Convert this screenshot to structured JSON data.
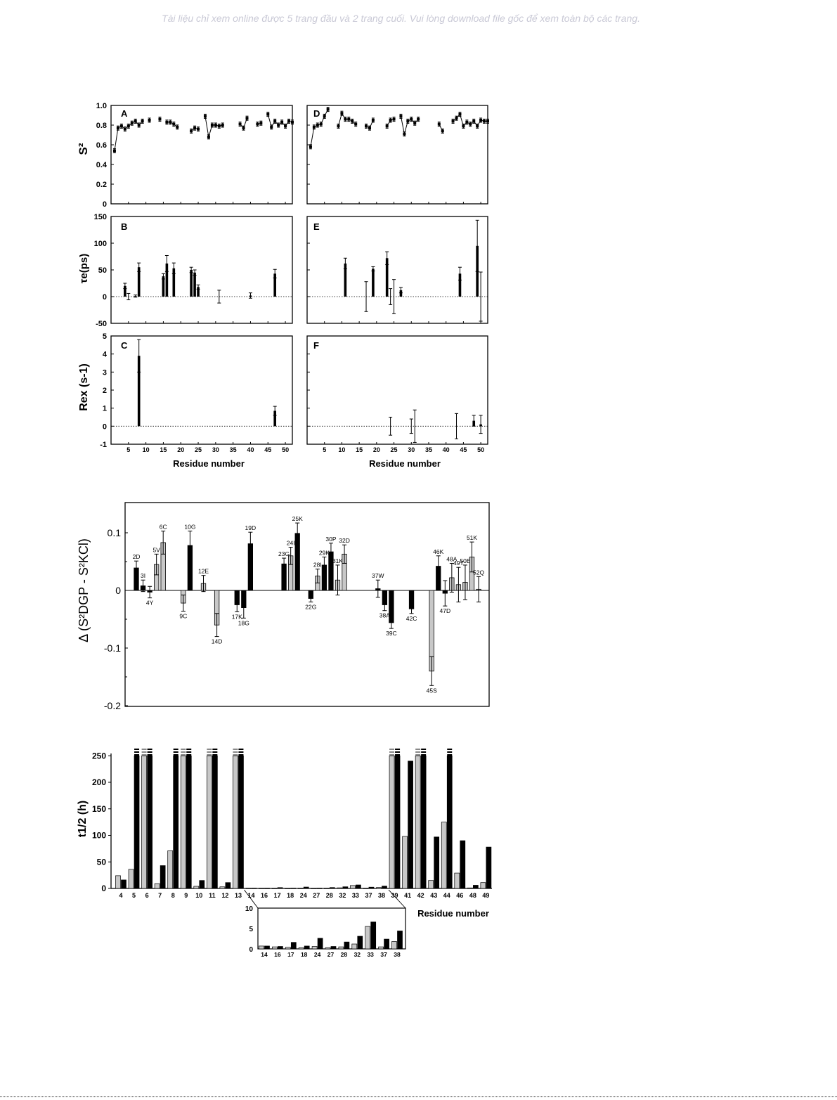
{
  "banner": "Tài liệu chỉ xem online được 5 trang đầu và 2 trang cuối. Vui lòng download file gốc để xem toàn bộ các trang.",
  "chart_data": [
    {
      "type": "scatter",
      "panel_left": "A",
      "panel_right": "D",
      "ylabel": "S²",
      "yticks": [
        "1.0",
        "0.8",
        "0.6",
        "0.4",
        "0.2",
        "0"
      ],
      "ylim": [
        0,
        1.0
      ],
      "xlim": [
        0,
        52
      ],
      "series": [
        {
          "x": [
            1,
            2,
            3,
            4,
            5,
            6,
            7,
            8,
            9,
            11,
            14,
            16,
            17,
            18,
            19,
            23,
            24,
            25,
            27,
            28,
            29,
            30,
            31,
            32,
            37,
            38,
            39,
            42,
            43,
            45,
            46,
            47,
            48,
            49,
            50,
            51,
            52
          ],
          "y": [
            0.54,
            0.77,
            0.79,
            0.76,
            0.79,
            0.82,
            0.84,
            0.8,
            0.84,
            0.85,
            0.86,
            0.83,
            0.83,
            0.81,
            0.78,
            0.74,
            0.77,
            0.76,
            0.89,
            0.68,
            0.8,
            0.8,
            0.79,
            0.8,
            0.81,
            0.77,
            0.87,
            0.81,
            0.82,
            0.91,
            0.78,
            0.84,
            0.8,
            0.83,
            0.79,
            0.84,
            0.83
          ]
        },
        {
          "x": [
            1,
            2,
            3,
            4,
            5,
            6,
            9,
            10,
            11,
            12,
            13,
            14,
            17,
            18,
            19,
            23,
            24,
            25,
            27,
            28,
            29,
            30,
            31,
            32,
            38,
            39,
            42,
            43,
            44,
            45,
            46,
            47,
            48,
            49,
            50,
            51,
            52
          ],
          "y": [
            0.58,
            0.78,
            0.8,
            0.81,
            0.89,
            0.96,
            0.79,
            0.92,
            0.86,
            0.86,
            0.84,
            0.81,
            0.79,
            0.77,
            0.85,
            0.79,
            0.85,
            0.86,
            0.89,
            0.71,
            0.84,
            0.86,
            0.82,
            0.86,
            0.81,
            0.74,
            0.84,
            0.87,
            0.91,
            0.79,
            0.83,
            0.81,
            0.84,
            0.79,
            0.85,
            0.84,
            0.84
          ]
        }
      ]
    },
    {
      "type": "bar",
      "panel_left": "B",
      "panel_right": "E",
      "ylabel": "τe(ps)",
      "yticks": [
        "150",
        "100",
        "50",
        "0",
        "-50"
      ],
      "ylim": [
        -50,
        150
      ],
      "xlim": [
        0,
        52
      ],
      "series": [
        {
          "x": [
            4,
            5,
            7,
            8,
            15,
            16,
            18,
            23,
            24,
            25,
            31,
            40,
            47
          ],
          "y": [
            20,
            0,
            1,
            55,
            38,
            62,
            53,
            50,
            45,
            18,
            0,
            2,
            43
          ],
          "err": [
            5,
            6,
            2,
            8,
            5,
            15,
            10,
            5,
            5,
            4,
            12,
            5,
            8
          ]
        },
        {
          "x": [
            11,
            17,
            19,
            23,
            24,
            25,
            27,
            44,
            49,
            50
          ],
          "y": [
            62,
            0,
            52,
            72,
            0,
            0,
            12,
            43,
            95,
            0
          ],
          "err": [
            10,
            28,
            4,
            12,
            15,
            32,
            5,
            12,
            48,
            46
          ]
        }
      ]
    },
    {
      "type": "bar",
      "panel_left": "C",
      "panel_right": "F",
      "ylabel": "Rex (s-1)",
      "yticks": [
        "5",
        "4",
        "3",
        "2",
        "1",
        "0",
        "-1"
      ],
      "ylim": [
        -1,
        5
      ],
      "xlim": [
        0,
        52
      ],
      "xticks": [
        5,
        10,
        15,
        20,
        25,
        30,
        35,
        40,
        45,
        50
      ],
      "xlabel": "Residue number",
      "series": [
        {
          "x": [
            8,
            47
          ],
          "y": [
            3.9,
            0.85
          ],
          "err": [
            0.9,
            0.25
          ]
        },
        {
          "x": [
            24,
            30,
            31,
            43,
            48,
            50
          ],
          "y": [
            0,
            0,
            0,
            0,
            0.3,
            0.1
          ],
          "err": [
            0.5,
            0.4,
            0.9,
            0.7,
            0.3,
            0.5
          ]
        }
      ]
    },
    {
      "type": "bar",
      "ylabel": "Δ (S²DGP - S²KCl)",
      "yticks": [
        "0.1",
        "0",
        "-0.1",
        "-0.2"
      ],
      "ylim": [
        -0.2,
        0.15
      ],
      "bars": [
        {
          "label": "2D",
          "v": 0.039,
          "f": "k",
          "e": 0.012
        },
        {
          "label": "3I",
          "v": 0.008,
          "f": "k",
          "e": 0.01
        },
        {
          "label": "4Y",
          "v": -0.003,
          "f": "k",
          "e": 0.01
        },
        {
          "label": "5V",
          "v": 0.045,
          "f": "g",
          "e": 0.018
        },
        {
          "label": "6C",
          "v": 0.083,
          "f": "g",
          "e": 0.02
        },
        {
          "label": "",
          "v": 0,
          "f": "k",
          "e": 0
        },
        {
          "label": "",
          "v": 0,
          "f": "k",
          "e": 0
        },
        {
          "label": "9C",
          "v": -0.022,
          "f": "g",
          "e": 0.014
        },
        {
          "label": "10G",
          "v": 0.078,
          "f": "k",
          "e": 0.025
        },
        {
          "label": "",
          "v": 0,
          "f": "k",
          "e": 0
        },
        {
          "label": "12E",
          "v": 0.012,
          "f": "g",
          "e": 0.014
        },
        {
          "label": "",
          "v": 0,
          "f": "k",
          "e": 0
        },
        {
          "label": "14D",
          "v": -0.06,
          "f": "g",
          "e": 0.02
        },
        {
          "label": "",
          "v": 0,
          "f": "k",
          "e": 0
        },
        {
          "label": "",
          "v": 0,
          "f": "k",
          "e": 0
        },
        {
          "label": "17K",
          "v": -0.025,
          "f": "k",
          "e": 0.012
        },
        {
          "label": "18G",
          "v": -0.03,
          "f": "k",
          "e": 0.018
        },
        {
          "label": "19D",
          "v": 0.081,
          "f": "k",
          "e": 0.02
        },
        {
          "label": "",
          "v": 0,
          "f": "k",
          "e": 0
        },
        {
          "label": "",
          "v": 0,
          "f": "k",
          "e": 0
        },
        {
          "label": "",
          "v": 0,
          "f": "k",
          "e": 0
        },
        {
          "label": "",
          "v": 0,
          "f": "k",
          "e": 0
        },
        {
          "label": "23G",
          "v": 0.046,
          "f": "k",
          "e": 0.01
        },
        {
          "label": "24I",
          "v": 0.06,
          "f": "g",
          "e": 0.015
        },
        {
          "label": "25K",
          "v": 0.099,
          "f": "k",
          "e": 0.018
        },
        {
          "label": "",
          "v": 0,
          "f": "k",
          "e": 0
        },
        {
          "label": "22G",
          "v": -0.014,
          "f": "k",
          "e": 0.006
        },
        {
          "label": "28I",
          "v": 0.025,
          "f": "g",
          "e": 0.012
        },
        {
          "label": "29K",
          "v": 0.044,
          "f": "k",
          "e": 0.014
        },
        {
          "label": "30P",
          "v": 0.067,
          "f": "k",
          "e": 0.015
        },
        {
          "label": "31K",
          "v": 0.018,
          "f": "g",
          "e": 0.026
        },
        {
          "label": "32D",
          "v": 0.063,
          "f": "g",
          "e": 0.016
        },
        {
          "label": "",
          "v": 0,
          "f": "k",
          "e": 0
        },
        {
          "label": "",
          "v": 0,
          "f": "k",
          "e": 0
        },
        {
          "label": "",
          "v": 0,
          "f": "k",
          "e": 0
        },
        {
          "label": "",
          "v": 0,
          "f": "k",
          "e": 0
        },
        {
          "label": "37W",
          "v": 0.003,
          "f": "k",
          "e": 0.015
        },
        {
          "label": "38A",
          "v": -0.025,
          "f": "k",
          "e": 0.01
        },
        {
          "label": "39C",
          "v": -0.056,
          "f": "k",
          "e": 0.01
        },
        {
          "label": "",
          "v": 0,
          "f": "k",
          "e": 0
        },
        {
          "label": "",
          "v": 0,
          "f": "k",
          "e": 0
        },
        {
          "label": "42C",
          "v": -0.032,
          "f": "k",
          "e": 0.008
        },
        {
          "label": "",
          "v": 0,
          "f": "k",
          "e": 0
        },
        {
          "label": "",
          "v": 0,
          "f": "k",
          "e": 0
        },
        {
          "label": "45S",
          "v": -0.14,
          "f": "g",
          "e": 0.025
        },
        {
          "label": "46K",
          "v": 0.042,
          "f": "k",
          "e": 0.018
        },
        {
          "label": "47D",
          "v": -0.005,
          "f": "k",
          "e": 0.022
        },
        {
          "label": "48A",
          "v": 0.022,
          "f": "g",
          "e": 0.025
        },
        {
          "label": "49T",
          "v": 0.01,
          "f": "g",
          "e": 0.03
        },
        {
          "label": "50E",
          "v": 0.014,
          "f": "g",
          "e": 0.03
        },
        {
          "label": "51K",
          "v": 0.058,
          "f": "g",
          "e": 0.026
        },
        {
          "label": "52Q",
          "v": 0.002,
          "f": "g",
          "e": 0.022
        }
      ]
    },
    {
      "type": "bar",
      "ylabel": "t1/2 (h)",
      "yticks": [
        "250",
        "200",
        "150",
        "100",
        "50",
        "0"
      ],
      "ylim": [
        0,
        250
      ],
      "xlabel": "Residue number",
      "categories": [
        "4",
        "5",
        "6",
        "7",
        "8",
        "9",
        "10",
        "11",
        "12",
        "13",
        "14",
        "16",
        "17",
        "18",
        "24",
        "27",
        "28",
        "32",
        "33",
        "37",
        "38",
        "39",
        "41",
        "42",
        "43",
        "44",
        "46",
        "48",
        "49"
      ],
      "series": [
        {
          "values": [
            24,
            36,
            250,
            9,
            71,
            250,
            4,
            250,
            3,
            250,
            0.7,
            0.5,
            0.4,
            0.3,
            0.6,
            0.3,
            0.5,
            1.2,
            5.5,
            0.5,
            1.8,
            250,
            98,
            250,
            15,
            125,
            29,
            1,
            11
          ]
        },
        {
          "values": [
            16,
            250,
            250,
            43,
            250,
            250,
            15,
            250,
            11,
            250,
            0.7,
            0.6,
            1.6,
            0.7,
            2.6,
            0.6,
            1.7,
            3.1,
            6.6,
            2.4,
            4.4,
            250,
            240,
            250,
            97,
            250,
            90,
            6,
            78
          ]
        }
      ],
      "overflow": [
        false,
        true,
        true,
        false,
        true,
        true,
        false,
        true,
        false,
        true,
        false,
        false,
        false,
        false,
        false,
        false,
        false,
        false,
        false,
        false,
        false,
        true,
        false,
        true,
        false,
        true,
        false,
        false,
        false
      ],
      "inset": {
        "yticks": [
          "10",
          "5",
          "0"
        ],
        "ylim": [
          0,
          10
        ],
        "categories": [
          "14",
          "16",
          "17",
          "18",
          "24",
          "27",
          "28",
          "32",
          "33",
          "37",
          "38"
        ]
      }
    }
  ]
}
